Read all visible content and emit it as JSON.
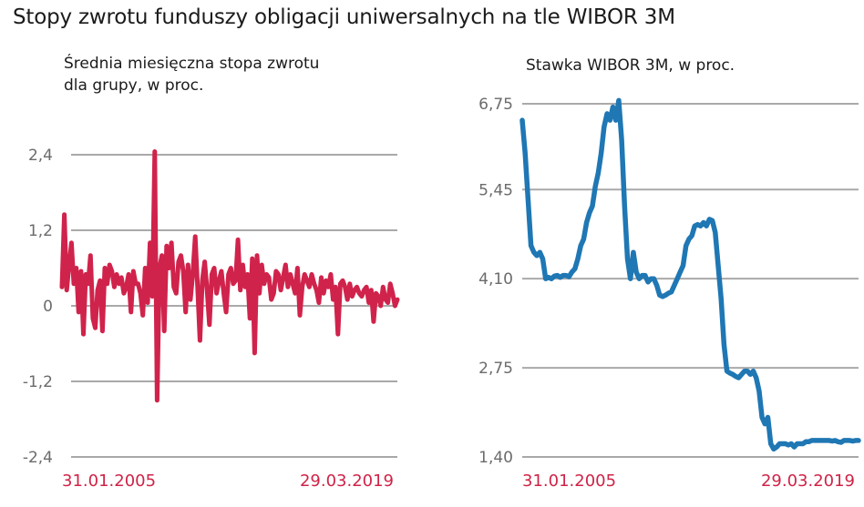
{
  "page": {
    "title": "Stopy zwrotu funduszy obligacji uniwersalnych na tle WIBOR 3M"
  },
  "chart_data": [
    {
      "type": "line",
      "title": "Średnia miesięczna stopa zwrotu\ndla grupy, w proc.",
      "color": "#d0234b",
      "yticks": [
        "2,4",
        "1,2",
        "0",
        "-1,2",
        "-2,4"
      ],
      "ytick_values": [
        2.4,
        1.2,
        0,
        -1.2,
        -2.4
      ],
      "ylim": [
        -2.4,
        2.4
      ],
      "x_start_label": "31.01.2005",
      "x_end_label": "29.03.2019",
      "grid": true,
      "series": [
        {
          "values": [
            0.3,
            1.45,
            0.25,
            0.65,
            1.0,
            0.35,
            0.6,
            -0.1,
            0.55,
            -0.45,
            0.5,
            0.35,
            0.8,
            -0.2,
            -0.35,
            0.25,
            0.4,
            -0.4,
            0.6,
            0.35,
            0.65,
            0.55,
            0.3,
            0.5,
            0.35,
            0.45,
            0.2,
            0.3,
            0.5,
            -0.1,
            0.55,
            0.35,
            0.35,
            0.2,
            -0.15,
            0.6,
            0.05,
            1.0,
            0.15,
            2.45,
            -1.5,
            0.6,
            0.8,
            -0.4,
            0.95,
            0.6,
            1.0,
            0.3,
            0.2,
            0.7,
            0.8,
            0.55,
            -0.1,
            0.65,
            0.1,
            0.5,
            1.1,
            0.3,
            -0.55,
            0.4,
            0.7,
            0.25,
            -0.3,
            0.5,
            0.6,
            0.2,
            0.4,
            0.55,
            0.2,
            -0.1,
            0.5,
            0.6,
            0.35,
            0.4,
            1.05,
            0.25,
            0.65,
            0.3,
            0.5,
            -0.2,
            0.75,
            -0.75,
            0.8,
            0.2,
            0.65,
            0.35,
            0.5,
            0.45,
            0.1,
            0.2,
            0.55,
            0.5,
            0.25,
            0.45,
            0.65,
            0.3,
            0.5,
            0.35,
            0.2,
            0.6,
            -0.15,
            0.3,
            0.5,
            0.4,
            0.3,
            0.5,
            0.35,
            0.25,
            0.05,
            0.45,
            0.2,
            0.4,
            0.3,
            0.5,
            0.1,
            0.3,
            -0.45,
            0.35,
            0.4,
            0.3,
            0.1,
            0.35,
            0.15,
            0.25,
            0.3,
            0.2,
            0.15,
            0.25,
            0.3,
            0.05,
            0.25,
            -0.25,
            0.2,
            0.15,
            0.0,
            0.3,
            0.1,
            0.05,
            0.35,
            0.2,
            0.0,
            0.1
          ]
        }
      ]
    },
    {
      "type": "line",
      "title": "Stawka WIBOR 3M, w proc.",
      "color": "#1f77b4",
      "yticks": [
        "6,75",
        "5,45",
        "4,10",
        "2,75",
        "1,40"
      ],
      "ytick_values": [
        6.75,
        5.45,
        4.1,
        2.75,
        1.4
      ],
      "ylim": [
        1.4,
        6.75
      ],
      "x_start_label": "31.01.2005",
      "x_end_label": "29.03.2019",
      "grid": true,
      "series": [
        {
          "values": [
            6.5,
            6.0,
            5.3,
            4.6,
            4.5,
            4.45,
            4.5,
            4.4,
            4.1,
            4.12,
            4.1,
            4.14,
            4.15,
            4.12,
            4.15,
            4.15,
            4.13,
            4.2,
            4.25,
            4.4,
            4.6,
            4.7,
            4.95,
            5.1,
            5.2,
            5.5,
            5.7,
            6.0,
            6.4,
            6.6,
            6.5,
            6.7,
            6.5,
            6.8,
            6.2,
            5.2,
            4.4,
            4.1,
            4.5,
            4.2,
            4.1,
            4.15,
            4.15,
            4.05,
            4.1,
            4.1,
            4.0,
            3.85,
            3.83,
            3.85,
            3.88,
            3.9,
            4.0,
            4.1,
            4.2,
            4.3,
            4.6,
            4.7,
            4.75,
            4.9,
            4.92,
            4.9,
            4.95,
            4.9,
            5.0,
            4.98,
            4.8,
            4.3,
            3.8,
            3.1,
            2.7,
            2.67,
            2.65,
            2.62,
            2.6,
            2.65,
            2.7,
            2.7,
            2.65,
            2.7,
            2.6,
            2.4,
            2.0,
            1.9,
            2.0,
            1.6,
            1.52,
            1.55,
            1.6,
            1.6,
            1.6,
            1.58,
            1.6,
            1.55,
            1.6,
            1.6,
            1.6,
            1.63,
            1.63,
            1.65,
            1.65,
            1.65,
            1.65,
            1.65,
            1.65,
            1.65,
            1.64,
            1.65,
            1.63,
            1.62,
            1.65,
            1.65,
            1.65,
            1.64,
            1.65,
            1.65
          ]
        }
      ]
    }
  ]
}
